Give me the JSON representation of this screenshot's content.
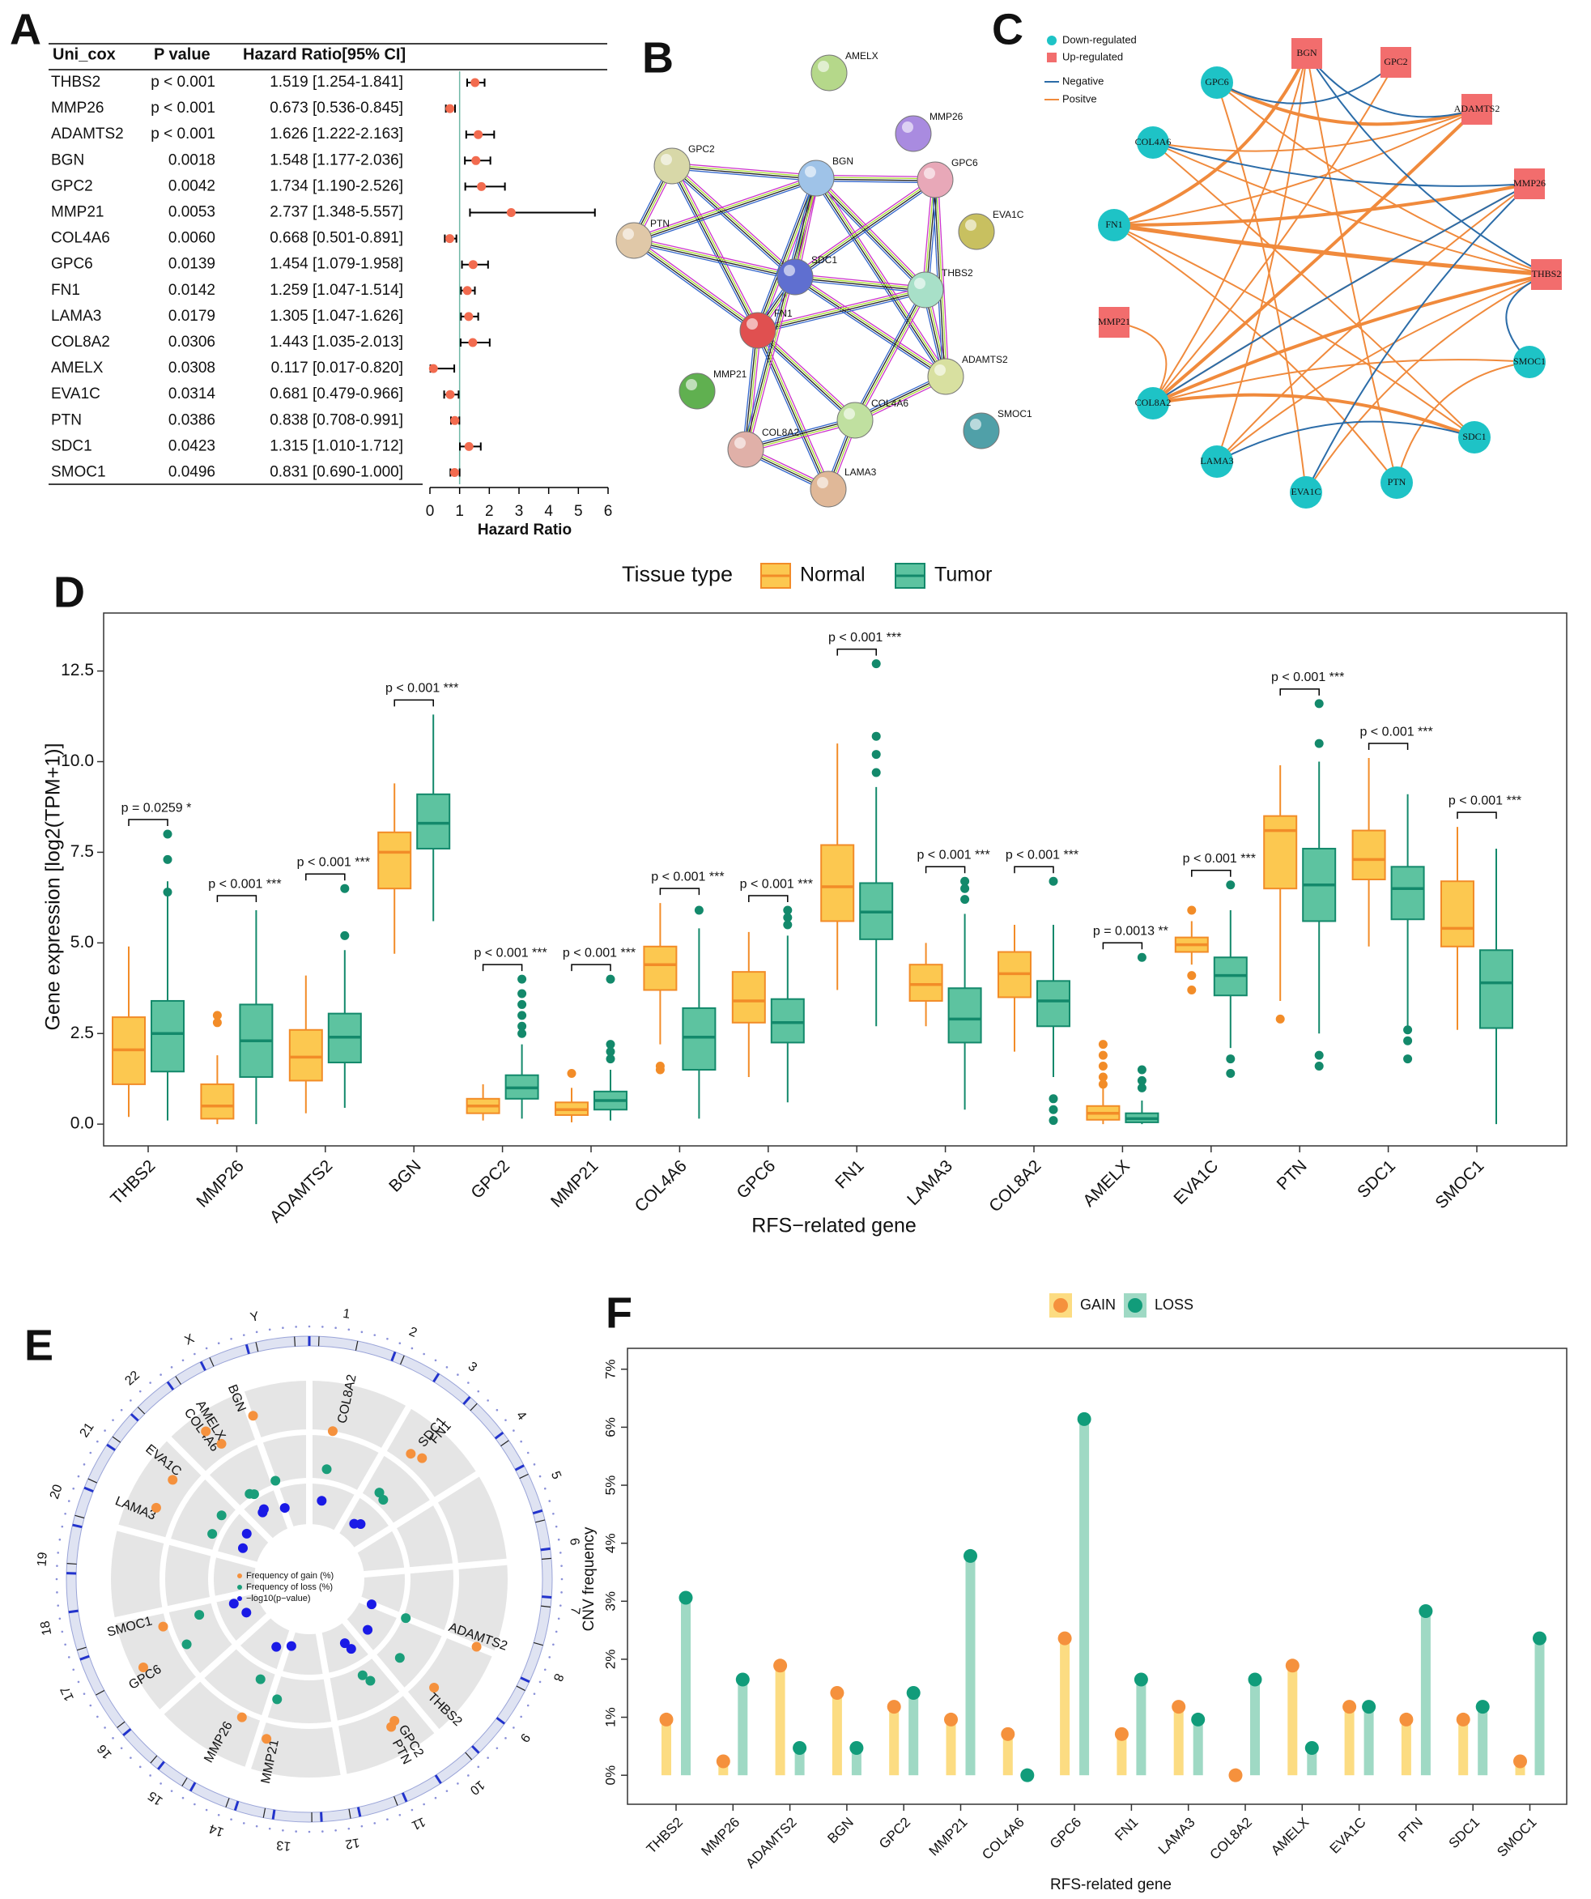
{
  "panel_labels": [
    "A",
    "B",
    "C",
    "D",
    "E",
    "F"
  ],
  "chart_data": [
    {
      "type": "forest",
      "columns": [
        "Uni_cox",
        "P value",
        "Hazard Ratio[95% CI]"
      ],
      "categories": [
        "THBS2",
        "MMP26",
        "ADAMTS2",
        "BGN",
        "GPC2",
        "MMP21",
        "COL4A6",
        "GPC6",
        "FN1",
        "LAMA3",
        "COL8A2",
        "AMELX",
        "EVA1C",
        "PTN",
        "SDC1",
        "SMOC1"
      ],
      "pvalue_labels": [
        "p < 0.001",
        "p < 0.001",
        "p < 0.001",
        "0.0018",
        "0.0042",
        "0.0053",
        "0.0060",
        "0.0139",
        "0.0142",
        "0.0179",
        "0.0306",
        "0.0308",
        "0.0314",
        "0.0386",
        "0.0423",
        "0.0496"
      ],
      "values": [
        1.519,
        0.673,
        1.626,
        1.548,
        1.734,
        2.737,
        0.668,
        1.454,
        1.259,
        1.305,
        1.443,
        0.117,
        0.681,
        0.838,
        1.315,
        0.831
      ],
      "lower": [
        1.254,
        0.536,
        1.222,
        1.177,
        1.19,
        1.348,
        0.501,
        1.079,
        1.047,
        1.047,
        1.035,
        0.017,
        0.479,
        0.708,
        1.01,
        0.69
      ],
      "upper": [
        1.841,
        0.845,
        2.163,
        2.036,
        2.526,
        5.557,
        0.891,
        1.958,
        1.514,
        1.626,
        2.013,
        0.82,
        0.966,
        0.991,
        1.712,
        1.0
      ],
      "value_labels": [
        "1.519 [1.254-1.841]",
        "0.673 [0.536-0.845]",
        "1.626 [1.222-2.163]",
        "1.548 [1.177-2.036]",
        "1.734 [1.190-2.526]",
        "2.737 [1.348-5.557]",
        "0.668 [0.501-0.891]",
        "1.454 [1.079-1.958]",
        "1.259 [1.047-1.514]",
        "1.305 [1.047-1.626]",
        "1.443 [1.035-2.013]",
        "0.117 [0.017-0.820]",
        "0.681 [0.479-0.966]",
        "0.838 [0.708-0.991]",
        "1.315 [1.010-1.712]",
        "0.831 [0.690-1.000]"
      ],
      "xlabel": "Hazard Ratio",
      "xlim": [
        0,
        6
      ],
      "xticks": [
        0,
        1,
        2,
        3,
        4,
        5,
        6
      ],
      "ref_line": 1,
      "color": "#f26b4f"
    },
    {
      "type": "box",
      "legend_title": "Tissue type",
      "xlabel": "RFS−related gene",
      "ylabel": "Gene expression [log2(TPM+1)]",
      "categories": [
        "THBS2",
        "MMP26",
        "ADAMTS2",
        "BGN",
        "GPC2",
        "MMP21",
        "COL4A6",
        "GPC6",
        "FN1",
        "LAMA3",
        "COL8A2",
        "AMELX",
        "EVA1C",
        "PTN",
        "SDC1",
        "SMOC1"
      ],
      "ylim": [
        -0.6,
        14.1
      ],
      "yticks": [
        {
          "value": 0,
          "label": "0.0"
        },
        {
          "value": 2.5,
          "label": "2.5"
        },
        {
          "value": 5,
          "label": "5.0"
        },
        {
          "value": 7.5,
          "label": "7.5"
        },
        {
          "value": 10,
          "label": "10.0"
        },
        {
          "value": 12.5,
          "label": "12.5"
        }
      ],
      "annotations": [
        "p = 0.0259 *",
        "p < 0.001 ***",
        "p < 0.001 ***",
        "p < 0.001 ***",
        "p < 0.001 ***",
        "p < 0.001 ***",
        "p < 0.001 ***",
        "p < 0.001 ***",
        "p < 0.001 ***",
        "p < 0.001 ***",
        "p < 0.001 ***",
        "p = 0.0013 **",
        "p < 0.001 ***",
        "p < 0.001 ***",
        "p < 0.001 ***",
        "p < 0.001 ***"
      ],
      "series": [
        {
          "name": "Normal",
          "color": "#fcc850",
          "stroke": "#f28c28",
          "values": [
            [
              0.2,
              1.1,
              2.05,
              2.95,
              4.9
            ],
            [
              0,
              0.15,
              0.5,
              1.1,
              1.9
            ],
            [
              0.3,
              1.2,
              1.85,
              2.6,
              4.1
            ],
            [
              4.7,
              6.5,
              7.5,
              8.05,
              9.4
            ],
            [
              0.1,
              0.3,
              0.5,
              0.7,
              1.1
            ],
            [
              0.05,
              0.25,
              0.4,
              0.6,
              1.0
            ],
            [
              2.2,
              3.7,
              4.4,
              4.9,
              6.1
            ],
            [
              1.3,
              2.8,
              3.4,
              4.2,
              5.3
            ],
            [
              3.7,
              5.6,
              6.55,
              7.7,
              10.5
            ],
            [
              2.7,
              3.4,
              3.85,
              4.4,
              5.0
            ],
            [
              2.0,
              3.5,
              4.15,
              4.75,
              5.5
            ],
            [
              0,
              0.12,
              0.3,
              0.5,
              1.0
            ],
            [
              4.4,
              4.75,
              4.95,
              5.15,
              5.6
            ],
            [
              3.4,
              6.5,
              8.1,
              8.5,
              9.9
            ],
            [
              4.9,
              6.75,
              7.3,
              8.1,
              10.1
            ],
            [
              2.6,
              4.9,
              5.4,
              6.7,
              8.2
            ]
          ],
          "outliers": [
            [],
            [
              3.0,
              2.8
            ],
            [],
            [],
            [],
            [
              1.4
            ],
            [
              1.6,
              1.5
            ],
            [],
            [],
            [],
            [],
            [
              2.2,
              1.9,
              1.6,
              1.3,
              1.1
            ],
            [
              5.9,
              4.1,
              3.7
            ],
            [
              2.9
            ],
            [],
            []
          ]
        },
        {
          "name": "Tumor",
          "color": "#5dc3a0",
          "stroke": "#13896b",
          "values": [
            [
              0.1,
              1.45,
              2.5,
              3.4,
              6.7
            ],
            [
              0,
              1.3,
              2.3,
              3.3,
              5.9
            ],
            [
              0.45,
              1.7,
              2.4,
              3.05,
              4.8
            ],
            [
              5.6,
              7.6,
              8.3,
              9.1,
              11.3
            ],
            [
              0.15,
              0.7,
              1.0,
              1.35,
              2.2
            ],
            [
              0.1,
              0.4,
              0.65,
              0.9,
              1.5
            ],
            [
              0.15,
              1.5,
              2.4,
              3.2,
              5.4
            ],
            [
              0.6,
              2.25,
              2.8,
              3.45,
              5.2
            ],
            [
              2.7,
              5.1,
              5.85,
              6.65,
              9.3
            ],
            [
              0.4,
              2.25,
              2.9,
              3.75,
              5.8
            ],
            [
              1.3,
              2.7,
              3.4,
              3.95,
              5.5
            ],
            [
              0,
              0.05,
              0.15,
              0.3,
              0.65
            ],
            [
              2.1,
              3.55,
              4.1,
              4.6,
              5.9
            ],
            [
              2.5,
              5.6,
              6.6,
              7.6,
              10.0
            ],
            [
              2.7,
              5.65,
              6.5,
              7.1,
              9.1
            ],
            [
              0,
              2.65,
              3.9,
              4.8,
              7.6
            ]
          ],
          "outliers": [
            [
              8.0,
              7.3,
              6.4
            ],
            [],
            [
              6.5,
              5.2
            ],
            [],
            [
              4.0,
              3.6,
              3.3,
              3.0,
              2.7,
              2.5
            ],
            [
              4.0,
              2.2,
              2.0,
              1.8
            ],
            [
              5.9
            ],
            [
              5.9,
              5.7,
              5.5
            ],
            [
              12.7,
              10.7,
              10.2,
              9.7
            ],
            [
              6.7,
              6.5,
              6.2
            ],
            [
              6.7,
              0.7,
              0.4,
              0.1
            ],
            [
              4.6,
              1.5,
              1.2,
              1.0
            ],
            [
              6.6,
              1.8,
              1.4
            ],
            [
              11.6,
              10.5,
              1.9,
              1.6
            ],
            [
              2.6,
              2.3,
              1.8
            ],
            []
          ]
        }
      ]
    },
    {
      "type": "lollipop",
      "xlabel": "RFS-related gene",
      "ylabel": "CNV frequency",
      "categories": [
        "THBS2",
        "MMP26",
        "ADAMTS2",
        "BGN",
        "GPC2",
        "MMP21",
        "COL4A6",
        "GPC6",
        "FN1",
        "LAMA3",
        "COL8A2",
        "AMELX",
        "EVA1C",
        "PTN",
        "SDC1",
        "SMOC1"
      ],
      "ylim": [
        -0.5,
        7.36
      ],
      "yticks": [
        {
          "value": 0,
          "label": "0%"
        },
        {
          "value": 1,
          "label": "1%"
        },
        {
          "value": 2,
          "label": "2%"
        },
        {
          "value": 3,
          "label": "3%"
        },
        {
          "value": 4,
          "label": "4%"
        },
        {
          "value": 5,
          "label": "5%"
        },
        {
          "value": 6,
          "label": "6%"
        },
        {
          "value": 7,
          "label": "7%"
        }
      ],
      "series": [
        {
          "name": "GAIN",
          "color": "#f5913d",
          "bar_color": "#fcdc82",
          "values": [
            0.96,
            0.24,
            1.89,
            1.42,
            1.18,
            0.96,
            0.71,
            2.36,
            0.71,
            1.18,
            0,
            1.89,
            1.18,
            0.96,
            0.96,
            0.24
          ]
        },
        {
          "name": "LOSS",
          "color": "#119c7a",
          "bar_color": "#9fd9c4",
          "values": [
            3.06,
            1.65,
            0.47,
            0.47,
            1.42,
            3.78,
            0,
            6.14,
            1.65,
            0.96,
            1.65,
            0.47,
            1.18,
            2.83,
            1.18,
            2.36
          ]
        }
      ]
    },
    {
      "type": "circos",
      "chromosomes": [
        "1",
        "2",
        "3",
        "4",
        "5",
        "6",
        "7",
        "8",
        "9",
        "10",
        "11",
        "12",
        "13",
        "14",
        "15",
        "16",
        "17",
        "18",
        "19",
        "20",
        "21",
        "22",
        "X",
        "Y"
      ],
      "genes": [
        "COL8A2",
        "SDC1",
        "FN1",
        "ADAMTS2",
        "THBS2",
        "GPC2",
        "PTN",
        "MMP21",
        "MMP26",
        "GPC6",
        "SMOC1",
        "LAMA3",
        "EVA1C",
        "COL4A6",
        "AMELX",
        "BGN"
      ],
      "up": [
        false,
        false,
        false,
        true,
        true,
        true,
        false,
        true,
        true,
        false,
        false,
        false,
        false,
        false,
        false,
        true
      ],
      "legend": [
        "Frequency of gain (%)",
        "Frequency of loss (%)",
        "−log10(p−value)"
      ],
      "gain": [
        0,
        0.96,
        0.71,
        1.89,
        0.96,
        1.18,
        0.96,
        0.96,
        0.24,
        2.36,
        0.24,
        1.18,
        1.18,
        0.71,
        1.89,
        1.42
      ],
      "loss": [
        1.65,
        1.18,
        1.65,
        0.47,
        3.06,
        1.42,
        2.83,
        3.78,
        1.65,
        6.14,
        2.36,
        0.96,
        1.18,
        0,
        0.47,
        0.47
      ],
      "neg_log10_p": [
        1.2,
        1.0,
        0.8,
        0.6,
        1.1,
        0.9,
        1.3,
        0.7,
        1.0,
        0.8,
        1.2,
        0.9,
        1.1,
        1.4,
        1.3,
        1.0
      ],
      "gain_lim": [
        0,
        3
      ],
      "loss_lim": [
        0,
        7
      ],
      "p_lim": [
        0,
        2
      ],
      "colors": [
        "#f5913d",
        "#1a9e7a",
        "#1a1ae6"
      ],
      "up_color": "#d42a2a",
      "down_color": "#3a6ea8"
    }
  ],
  "network_b": {
    "nodes": [
      "AMELX",
      "MMP26",
      "GPC2",
      "BGN",
      "GPC6",
      "EVA1C",
      "PTN",
      "SDC1",
      "THBS2",
      "FN1",
      "ADAMTS2",
      "MMP21",
      "COL4A6",
      "SMOC1",
      "COL8A2",
      "LAMA3"
    ]
  },
  "network_c": {
    "legend": [
      "Down-regulated",
      "Up-regulated",
      "Negative",
      "Positve"
    ],
    "nodes": [
      "BGN",
      "GPC2",
      "ADAMTS2",
      "MMP26",
      "THBS2",
      "SMOC1",
      "SDC1",
      "PTN",
      "EVA1C",
      "LAMA3",
      "COL8A2",
      "MMP21",
      "FN1",
      "COL4A6",
      "GPC6"
    ],
    "up": [
      true,
      true,
      true,
      true,
      true,
      false,
      false,
      false,
      false,
      false,
      false,
      true,
      false,
      false,
      false
    ],
    "down_color": "#1ec3c6",
    "up_color": "#f26d6d",
    "negative_color": "#2b6ca8",
    "positive_color": "#f08a3c"
  }
}
